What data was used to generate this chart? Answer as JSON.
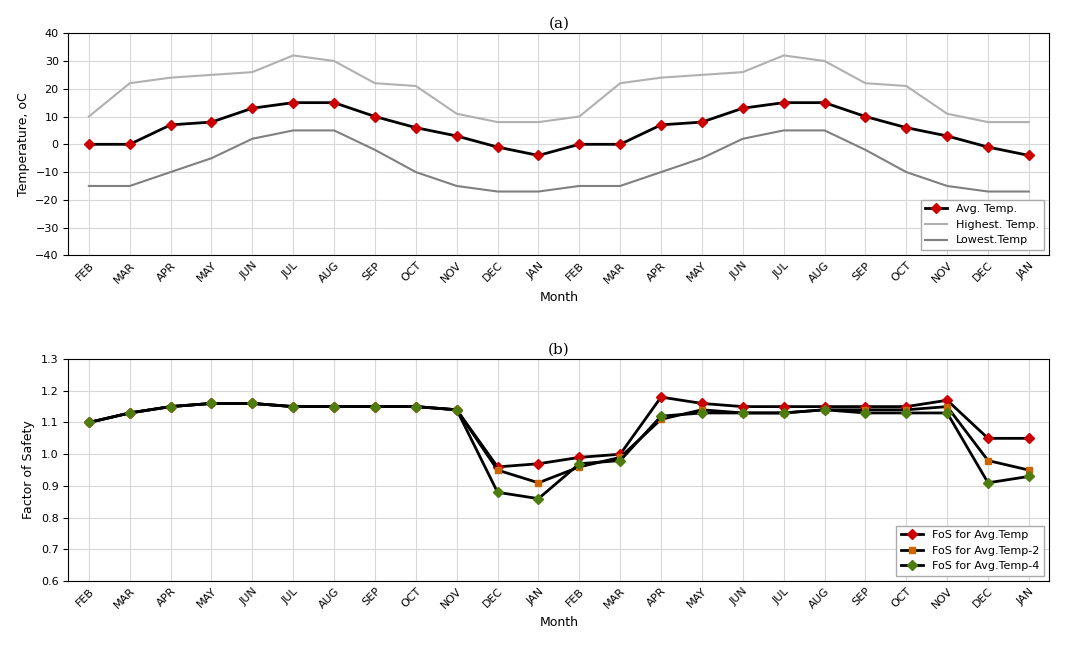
{
  "months": [
    "FEB",
    "MAR",
    "APR",
    "MAY",
    "JUN",
    "JUL",
    "AUG",
    "SEP",
    "OCT",
    "NOV",
    "DEC",
    "JAN",
    "FEB",
    "MAR",
    "APR",
    "MAY",
    "JUN",
    "JUL",
    "AUG",
    "SEP",
    "OCT",
    "NOV",
    "DEC",
    "JAN"
  ],
  "avg_temp": [
    0,
    0,
    7,
    8,
    13,
    15,
    15,
    10,
    6,
    3,
    -1,
    -4,
    0,
    0,
    7,
    8,
    13,
    15,
    15,
    10,
    6,
    3,
    -1,
    -4
  ],
  "high_temp": [
    10,
    22,
    24,
    25,
    26,
    32,
    30,
    22,
    21,
    11,
    8,
    8,
    10,
    22,
    24,
    25,
    26,
    32,
    30,
    22,
    21,
    11,
    8,
    8
  ],
  "low_temp": [
    -15,
    -15,
    -10,
    -5,
    2,
    5,
    5,
    -2,
    -10,
    -15,
    -17,
    -17,
    -15,
    -15,
    -10,
    -5,
    2,
    5,
    5,
    -2,
    -10,
    -15,
    -17,
    -17
  ],
  "fos_avg": [
    1.1,
    1.13,
    1.15,
    1.16,
    1.16,
    1.15,
    1.15,
    1.15,
    1.15,
    1.14,
    0.96,
    0.97,
    0.99,
    1.0,
    1.18,
    1.16,
    1.15,
    1.15,
    1.15,
    1.15,
    1.15,
    1.17,
    1.05,
    1.05
  ],
  "fos_avg2": [
    1.1,
    1.13,
    1.15,
    1.16,
    1.16,
    1.15,
    1.15,
    1.15,
    1.15,
    1.14,
    0.95,
    0.91,
    0.96,
    0.99,
    1.11,
    1.14,
    1.13,
    1.13,
    1.14,
    1.14,
    1.14,
    1.15,
    0.98,
    0.95
  ],
  "fos_avg4": [
    1.1,
    1.13,
    1.15,
    1.16,
    1.16,
    1.15,
    1.15,
    1.15,
    1.15,
    1.14,
    0.88,
    0.86,
    0.97,
    0.98,
    1.12,
    1.13,
    1.13,
    1.13,
    1.14,
    1.13,
    1.13,
    1.13,
    0.91,
    0.93
  ],
  "panel_a_label": "(a)",
  "panel_b_label": "(b)",
  "xlabel": "Month",
  "ylabel_a": "Temperature, oC",
  "ylabel_b": "Factor of Safety",
  "ylim_a": [
    -40,
    40
  ],
  "ylim_b": [
    0.6,
    1.3
  ],
  "yticks_a": [
    -40,
    -30,
    -20,
    -10,
    0,
    10,
    20,
    30,
    40
  ],
  "yticks_b": [
    0.6,
    0.7,
    0.8,
    0.9,
    1.0,
    1.1,
    1.2,
    1.3
  ],
  "color_avg_temp": "#000000",
  "color_high_temp": "#b0b0b0",
  "color_low_temp": "#808080",
  "color_fos_avg": "#cc0000",
  "color_fos_avg2": "#cc6600",
  "color_fos_avg4": "#4d7c0f",
  "legend_a": [
    "Avg. Temp.",
    "Highest. Temp.",
    "Lowest.Temp"
  ],
  "legend_b": [
    "FoS for Avg.Temp",
    "FoS for Avg.Temp-2",
    "FoS for Avg.Temp-4"
  ],
  "grid_color": "#d8d8d8",
  "bg_color": "#ffffff",
  "fig_bg_color": "#ffffff"
}
